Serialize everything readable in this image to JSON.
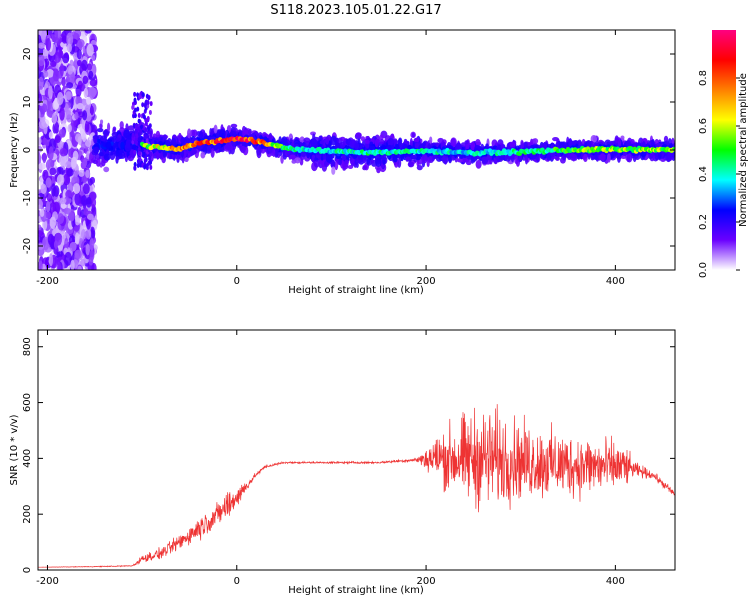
{
  "title": "S118.2023.105.01.22.G17",
  "chart_data": [
    {
      "type": "heatmap",
      "title": "S118.2023.105.01.22.G17",
      "xlabel": "Height of straight line (km)",
      "ylabel": "Frequency (Hz)",
      "xlim": [
        -210,
        463
      ],
      "ylim": [
        -25,
        25
      ],
      "xticks": [
        -200,
        0,
        200,
        400
      ],
      "yticks": [
        -20,
        -10,
        0,
        10,
        20
      ],
      "colorbar": {
        "label": "Normalized spectral amplitude",
        "range": [
          0,
          1
        ],
        "ticks": [
          "0.0",
          "0.2",
          "0.4",
          "0.6",
          "0.8"
        ],
        "colors": [
          "#ffffff",
          "#6a00ff",
          "#0000ff",
          "#00ffff",
          "#00ff00",
          "#ffff00",
          "#ff8000",
          "#ff0000",
          "#ff0080"
        ]
      },
      "ridge_x": [
        -100,
        -80,
        -60,
        -40,
        -20,
        0,
        20,
        40,
        60,
        80,
        100,
        150,
        200,
        250,
        300,
        350,
        400,
        460
      ],
      "ridge_freq": [
        1,
        0.5,
        0.3,
        1.5,
        1.8,
        2.5,
        1.8,
        1.0,
        0.2,
        0.0,
        -0.3,
        -0.5,
        -0.2,
        -0.6,
        -0.4,
        0.0,
        0.1,
        0.0
      ],
      "ridge_amplitude": [
        0.55,
        0.7,
        0.75,
        0.85,
        0.9,
        0.95,
        0.88,
        0.6,
        0.45,
        0.4,
        0.42,
        0.45,
        0.42,
        0.4,
        0.45,
        0.55,
        0.6,
        0.6
      ],
      "grid": false
    },
    {
      "type": "line",
      "xlabel": "Height of straight line (km)",
      "ylabel": "SNR (10 * v/v)",
      "xlim": [
        -210,
        463
      ],
      "ylim": [
        0,
        860
      ],
      "xticks": [
        -200,
        0,
        200,
        400
      ],
      "yticks": [
        0,
        200,
        400,
        600,
        800
      ],
      "color": "#ee3333",
      "x": [
        -210,
        -150,
        -110,
        -100,
        -80,
        -60,
        -40,
        -20,
        -10,
        0,
        10,
        20,
        30,
        50,
        100,
        150,
        190,
        210,
        230,
        250,
        270,
        300,
        330,
        360,
        390,
        410,
        420,
        440,
        463
      ],
      "y": [
        10,
        12,
        15,
        40,
        60,
        100,
        150,
        200,
        230,
        260,
        300,
        340,
        370,
        385,
        385,
        385,
        395,
        400,
        400,
        400,
        400,
        390,
        380,
        375,
        370,
        370,
        360,
        340,
        270
      ],
      "spread": [
        0,
        2,
        3,
        20,
        30,
        40,
        60,
        60,
        80,
        60,
        30,
        10,
        8,
        5,
        5,
        5,
        10,
        120,
        200,
        250,
        260,
        200,
        180,
        160,
        150,
        110,
        40,
        20,
        20
      ],
      "grid": false
    }
  ]
}
